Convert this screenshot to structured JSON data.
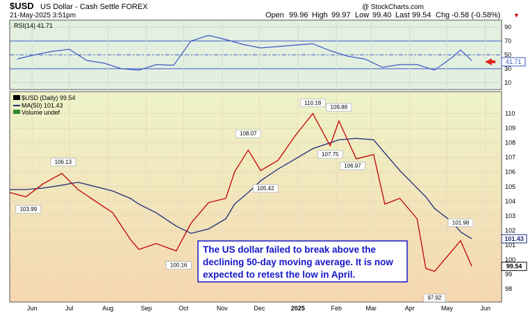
{
  "header": {
    "symbol": "$USD",
    "name": "US Dollar - Cash Settle FOREX",
    "datetime": "21-May-2025 3:51pm",
    "open_label": "Open",
    "open": "99.96",
    "high_label": "High",
    "high": "99.97",
    "low_label": "Low",
    "low": "99.40",
    "last_label": "Last",
    "last": "99.54",
    "chg_label": "Chg",
    "chg": "-0.58 (-0.58%)",
    "chg_arrow": "▼",
    "brand": "@ StockCharts.com"
  },
  "chart_data": [
    {
      "type": "line",
      "title": "RSI(14) 41.71",
      "ylim": [
        0,
        100
      ],
      "yticks": [
        10,
        30,
        50,
        70,
        90
      ],
      "reference_lines": [
        30,
        70,
        50
      ],
      "current_value_label": "41.71",
      "x": [
        "2024-05-20",
        "2024-06-03",
        "2024-06-17",
        "2024-07-01",
        "2024-07-15",
        "2024-07-29",
        "2024-08-12",
        "2024-08-26",
        "2024-09-09",
        "2024-09-23",
        "2024-10-07",
        "2024-10-21",
        "2024-11-04",
        "2024-11-18",
        "2024-12-02",
        "2024-12-16",
        "2024-12-30",
        "2025-01-13",
        "2025-01-27",
        "2025-02-10",
        "2025-02-24",
        "2025-03-10",
        "2025-03-24",
        "2025-04-07",
        "2025-04-21",
        "2025-05-05",
        "2025-05-12",
        "2025-05-21"
      ],
      "values": [
        44,
        50,
        55,
        58,
        42,
        38,
        30,
        28,
        36,
        35,
        70,
        78,
        72,
        65,
        60,
        62,
        64,
        66,
        56,
        48,
        44,
        32,
        36,
        36,
        28,
        46,
        57,
        41.71
      ],
      "colors": {
        "line": "#3a57c6",
        "band_lines": "#3a57c6",
        "bg": "#e3f0e0"
      }
    },
    {
      "type": "line",
      "title": "$USD (Daily) 99.54",
      "legend": [
        "$USD (Daily) 99.54",
        "MA(50) 101.43",
        "Volume undef"
      ],
      "ylim": [
        97.1,
        111.5
      ],
      "yticks": [
        98,
        99,
        100,
        101,
        102,
        103,
        104,
        105,
        106,
        107,
        108,
        109,
        110
      ],
      "xticks": [
        "Jun",
        "Jul",
        "Aug",
        "Sep",
        "Oct",
        "Nov",
        "Dec",
        "2025",
        "Feb",
        "Mar",
        "Apr",
        "May",
        "Jun"
      ],
      "xtick_dates": [
        "2024-06-01",
        "2024-07-01",
        "2024-08-01",
        "2024-09-01",
        "2024-10-01",
        "2024-11-01",
        "2024-12-01",
        "2025-01-01",
        "2025-02-01",
        "2025-03-01",
        "2025-04-01",
        "2025-05-01",
        "2025-06-01"
      ],
      "x": [
        "2024-05-14",
        "2024-05-27",
        "2024-06-10",
        "2024-06-25",
        "2024-07-08",
        "2024-07-22",
        "2024-08-05",
        "2024-08-19",
        "2024-08-26",
        "2024-09-09",
        "2024-09-25",
        "2024-10-07",
        "2024-10-21",
        "2024-11-04",
        "2024-11-11",
        "2024-11-22",
        "2024-12-02",
        "2024-12-16",
        "2024-12-30",
        "2025-01-13",
        "2025-01-27",
        "2025-02-03",
        "2025-02-17",
        "2025-03-03",
        "2025-03-12",
        "2025-03-24",
        "2025-04-07",
        "2025-04-14",
        "2025-04-21",
        "2025-05-05",
        "2025-05-12",
        "2025-05-21"
      ],
      "values": [
        104.6,
        104.3,
        105.2,
        105.9,
        104.8,
        104.0,
        103.2,
        101.4,
        100.7,
        101.1,
        100.6,
        102.5,
        103.9,
        104.2,
        106.0,
        107.5,
        106.1,
        106.8,
        108.5,
        110.0,
        107.8,
        109.5,
        106.9,
        107.2,
        103.8,
        104.2,
        102.8,
        99.4,
        99.2,
        100.6,
        101.3,
        99.54
      ],
      "ma50_values": [
        104.8,
        104.8,
        104.9,
        105.1,
        105.3,
        105.0,
        104.7,
        104.2,
        103.8,
        103.2,
        102.3,
        101.8,
        102.1,
        102.8,
        103.8,
        104.6,
        105.4,
        106.2,
        106.9,
        107.6,
        108.0,
        108.2,
        108.3,
        108.2,
        107.3,
        106.1,
        104.9,
        104.3,
        103.5,
        102.6,
        101.9,
        101.43
      ],
      "callouts": [
        {
          "text": "103.99",
          "x": "2024-05-29",
          "y": 103.99
        },
        {
          "text": "106.13",
          "x": "2024-06-26",
          "y": 106.13
        },
        {
          "text": "100.16",
          "x": "2024-09-27",
          "y": 100.16
        },
        {
          "text": "108.07",
          "x": "2024-11-22",
          "y": 108.07
        },
        {
          "text": "105.42",
          "x": "2024-12-06",
          "y": 105.42
        },
        {
          "text": "110.18",
          "x": "2025-01-13",
          "y": 110.18
        },
        {
          "text": "107.75",
          "x": "2025-01-27",
          "y": 107.75
        },
        {
          "text": "109.88",
          "x": "2025-02-03",
          "y": 109.88
        },
        {
          "text": "106.97",
          "x": "2025-02-14",
          "y": 106.97
        },
        {
          "text": "97.92",
          "x": "2025-04-21",
          "y": 97.92
        },
        {
          "text": "101.98",
          "x": "2025-05-12",
          "y": 101.98
        }
      ],
      "side_labels": [
        {
          "text": "101.43",
          "value": 101.43,
          "color": "#1b2a7a"
        },
        {
          "text": "99.54",
          "value": 99.54,
          "color": "#000000"
        }
      ],
      "colors": {
        "price": "#c00000",
        "ma": "#1b2a7a",
        "bg_top": "#eef3c8",
        "bg_bottom": "#f6d7b0"
      }
    }
  ],
  "annotation": {
    "lines": [
      "The US dollar failed to break above the",
      "declining 50-day moving average. It is now",
      "expected to retest the low in April."
    ],
    "color": "#1515c8"
  }
}
